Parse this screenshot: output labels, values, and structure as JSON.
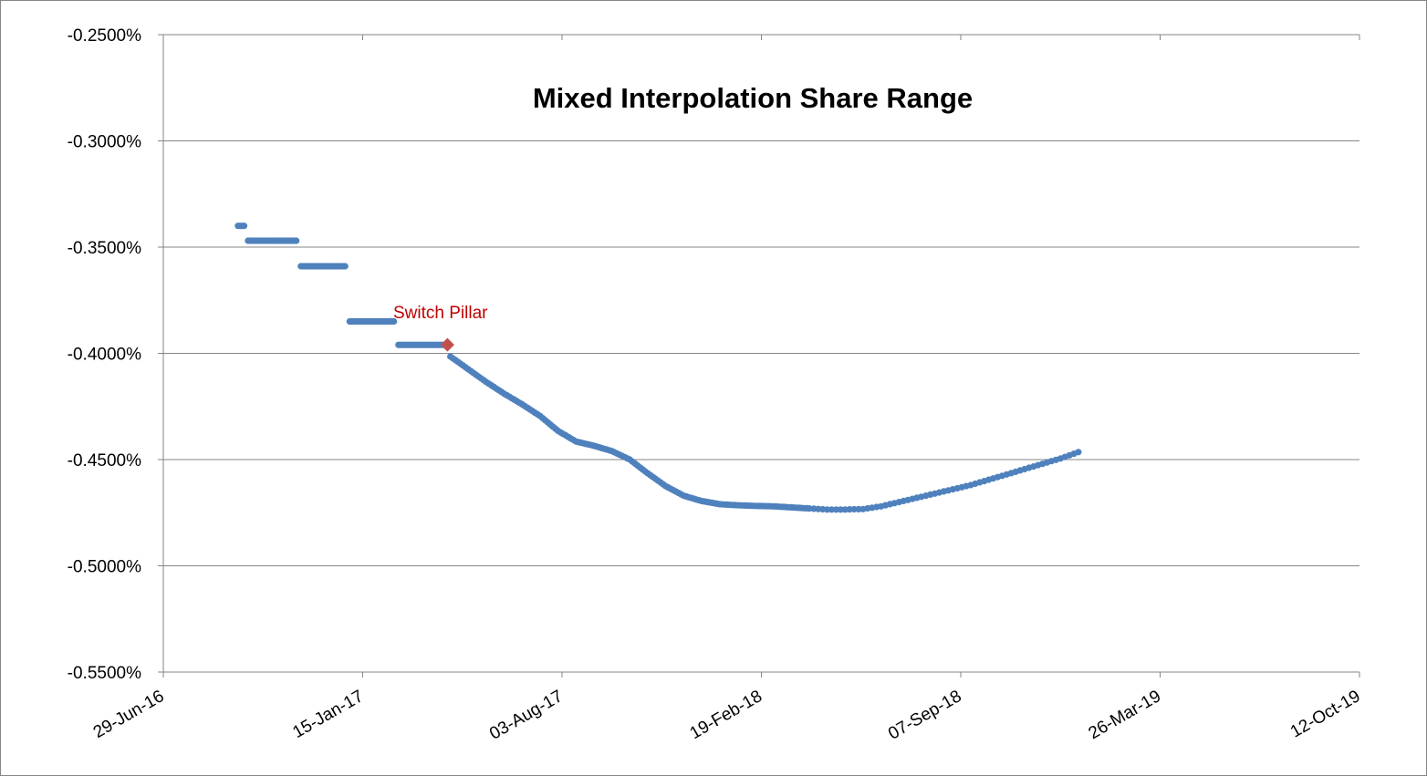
{
  "chart_data": {
    "type": "scatter",
    "title": "Mixed Interpolation Share Range",
    "xlabel": "",
    "ylabel": "",
    "x_axis": {
      "type": "date",
      "min": "2016-06-29",
      "max": "2019-10-12",
      "ticks": [
        "2016-06-29",
        "2017-01-15",
        "2017-08-03",
        "2018-02-19",
        "2018-09-07",
        "2019-03-26",
        "2019-10-12"
      ],
      "tick_labels": [
        "29-Jun-16",
        "15-Jan-17",
        "03-Aug-17",
        "19-Feb-18",
        "07-Sep-18",
        "26-Mar-19",
        "12-Oct-19"
      ]
    },
    "y_axis": {
      "min": -0.55,
      "max": -0.25,
      "ticks": [
        -0.25,
        -0.3,
        -0.35,
        -0.4,
        -0.45,
        -0.5,
        -0.55
      ],
      "tick_labels": [
        "-0.2500%",
        "-0.3000%",
        "-0.3500%",
        "-0.4000%",
        "-0.4500%",
        "-0.5000%",
        "-0.5500%"
      ],
      "unit": "%"
    },
    "grid": "horizontal",
    "legend": "none",
    "steps": [
      {
        "x_start": "2016-09-12",
        "x_end": "2016-09-19",
        "y": -0.34
      },
      {
        "x_start": "2016-09-22",
        "x_end": "2016-11-10",
        "y": -0.347
      },
      {
        "x_start": "2016-11-14",
        "x_end": "2016-12-29",
        "y": -0.359
      },
      {
        "x_start": "2017-01-02",
        "x_end": "2017-02-16",
        "y": -0.385
      },
      {
        "x_start": "2017-02-20",
        "x_end": "2017-04-07",
        "y": -0.396
      }
    ],
    "curve": [
      {
        "x": "2017-04-13",
        "y": -0.4015
      },
      {
        "x": "2017-05-01",
        "y": -0.4075
      },
      {
        "x": "2017-05-19",
        "y": -0.4135
      },
      {
        "x": "2017-06-06",
        "y": -0.419
      },
      {
        "x": "2017-06-24",
        "y": -0.424
      },
      {
        "x": "2017-07-12",
        "y": -0.4295
      },
      {
        "x": "2017-07-30",
        "y": -0.4365
      },
      {
        "x": "2017-08-17",
        "y": -0.4415
      },
      {
        "x": "2017-09-04",
        "y": -0.4435
      },
      {
        "x": "2017-09-22",
        "y": -0.446
      },
      {
        "x": "2017-10-10",
        "y": -0.45
      },
      {
        "x": "2017-10-28",
        "y": -0.4565
      },
      {
        "x": "2017-11-15",
        "y": -0.4625
      },
      {
        "x": "2017-12-03",
        "y": -0.467
      },
      {
        "x": "2017-12-21",
        "y": -0.4695
      },
      {
        "x": "2018-01-08",
        "y": -0.471
      },
      {
        "x": "2018-01-26",
        "y": -0.4715
      },
      {
        "x": "2018-02-13",
        "y": -0.4718
      },
      {
        "x": "2018-03-03",
        "y": -0.472
      },
      {
        "x": "2018-03-21",
        "y": -0.4725
      },
      {
        "x": "2018-04-08",
        "y": -0.473
      },
      {
        "x": "2018-04-26",
        "y": -0.4735
      },
      {
        "x": "2018-05-14",
        "y": -0.4735
      },
      {
        "x": "2018-06-01",
        "y": -0.4733
      },
      {
        "x": "2018-06-19",
        "y": -0.472
      },
      {
        "x": "2018-07-07",
        "y": -0.47
      },
      {
        "x": "2018-07-25",
        "y": -0.468
      },
      {
        "x": "2018-08-12",
        "y": -0.466
      },
      {
        "x": "2018-08-30",
        "y": -0.464
      },
      {
        "x": "2018-09-17",
        "y": -0.462
      },
      {
        "x": "2018-10-05",
        "y": -0.4595
      },
      {
        "x": "2018-10-23",
        "y": -0.457
      },
      {
        "x": "2018-11-10",
        "y": -0.4545
      },
      {
        "x": "2018-11-28",
        "y": -0.452
      },
      {
        "x": "2018-12-16",
        "y": -0.4495
      },
      {
        "x": "2019-01-03",
        "y": -0.4465
      }
    ],
    "annotation": {
      "label": "Switch Pillar",
      "x": "2017-04-10",
      "y": -0.396
    },
    "colors": {
      "series": "#4f81bd",
      "marker": "#c0504d",
      "annotation": "#c00000",
      "grid": "#868686"
    }
  }
}
